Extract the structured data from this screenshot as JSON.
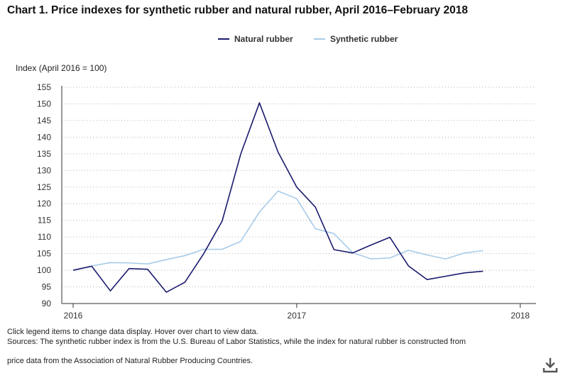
{
  "page": {
    "title": "Chart 1. Price indexes for synthetic rubber and natural rubber, April 2016–February 2018",
    "notes": [
      "Click legend items to change data display. Hover over chart to view data.",
      "Sources: The synthetic rubber index is from the U.S. Bureau of Labor Statistics, while the index for natural rubber is constructed from",
      "price data from the Association of Natural Rubber Producing Countries."
    ],
    "download_icon": "download-icon"
  },
  "chart_data": {
    "type": "line",
    "title": "Chart 1. Price indexes for synthetic rubber and natural rubber, April 2016–February 2018",
    "xlabel": "",
    "ylabel": "Index (April 2016 = 100)",
    "x": [
      "Apr 2016",
      "May 2016",
      "Jun 2016",
      "Jul 2016",
      "Aug 2016",
      "Sep 2016",
      "Oct 2016",
      "Nov 2016",
      "Dec 2016",
      "Jan 2017",
      "Feb 2017",
      "Mar 2017",
      "Apr 2017",
      "May 2017",
      "Jun 2017",
      "Jul 2017",
      "Aug 2017",
      "Sep 2017",
      "Oct 2017",
      "Nov 2017",
      "Dec 2017",
      "Jan 2018",
      "Feb 2018"
    ],
    "x_tick_labels": [
      {
        "label": "2016",
        "at_index": 0
      },
      {
        "label": "2017",
        "at_index": 12
      },
      {
        "label": "2018",
        "at_index": 24
      }
    ],
    "x_range": [
      0,
      25
    ],
    "ylim": [
      90,
      155
    ],
    "yticks": [
      90,
      95,
      100,
      105,
      110,
      115,
      120,
      125,
      130,
      135,
      140,
      145,
      150,
      155
    ],
    "grid": true,
    "legend_position": "top-center",
    "series": [
      {
        "name": "Natural rubber",
        "color": "#1a1a6e",
        "start_index": 0,
        "values": [
          100.0,
          101.2,
          93.8,
          100.5,
          100.3,
          93.4,
          96.4,
          104.9,
          114.8,
          135.0,
          150.3,
          135.5,
          125.0,
          119.0,
          106.2,
          105.2,
          107.6,
          109.9,
          101.3,
          97.2,
          98.2,
          99.2,
          99.7
        ]
      },
      {
        "name": "Synthetic rubber",
        "color": "#a8cbe8",
        "start_index": 0,
        "values": [
          100.0,
          101.3,
          102.3,
          102.2,
          101.9,
          103.2,
          104.4,
          106.3,
          106.3,
          108.7,
          117.5,
          123.8,
          121.5,
          112.5,
          111.0,
          105.3,
          103.4,
          103.7,
          106.0,
          104.6,
          103.4,
          105.2,
          105.9
        ]
      }
    ]
  }
}
